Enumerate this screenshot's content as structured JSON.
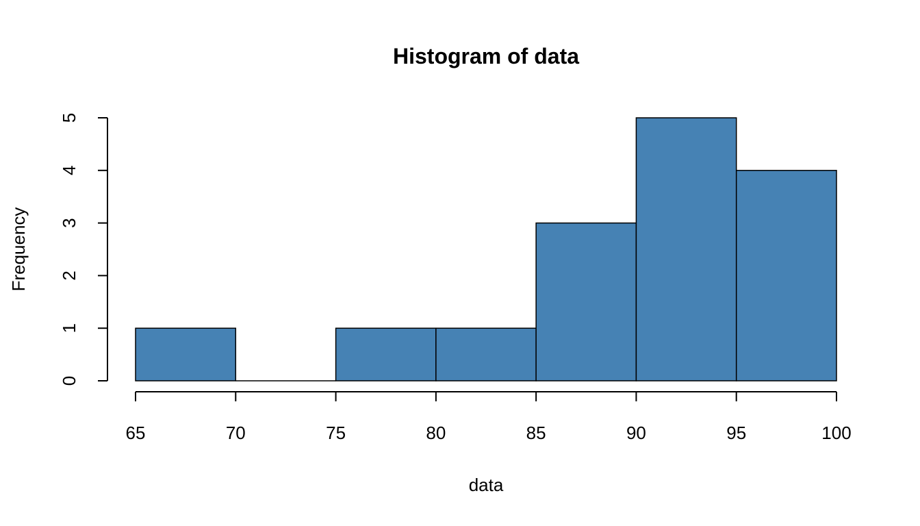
{
  "chart_data": {
    "type": "bar",
    "title": "Histogram of data",
    "xlabel": "data",
    "ylabel": "Frequency",
    "bins": [
      {
        "from": 65,
        "to": 70,
        "count": 1
      },
      {
        "from": 70,
        "to": 75,
        "count": 0
      },
      {
        "from": 75,
        "to": 80,
        "count": 1
      },
      {
        "from": 80,
        "to": 85,
        "count": 1
      },
      {
        "from": 85,
        "to": 90,
        "count": 3
      },
      {
        "from": 90,
        "to": 95,
        "count": 5
      },
      {
        "from": 95,
        "to": 100,
        "count": 4
      }
    ],
    "xlim": [
      65,
      100
    ],
    "ylim": [
      0,
      5
    ],
    "x_ticks": [
      65,
      70,
      75,
      80,
      85,
      90,
      95,
      100
    ],
    "y_ticks": [
      0,
      1,
      2,
      3,
      4,
      5
    ],
    "bar_color": "#4682B4",
    "grid": false
  }
}
